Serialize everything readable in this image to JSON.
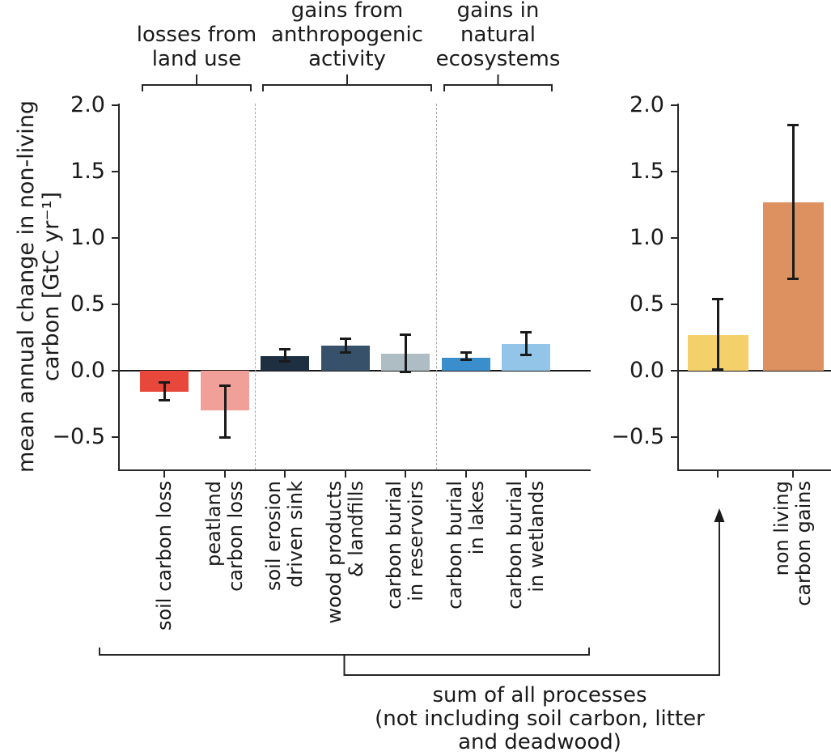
{
  "chart_data": {
    "type": "bar",
    "title": "",
    "ylabel": "mean annual change in non-living\ncarbon [GtC yr⁻¹]",
    "ylim": [
      -0.75,
      2.02
    ],
    "yticks": [
      2.0,
      1.5,
      1.0,
      0.5,
      0.0,
      -0.5
    ],
    "ytick_labels": [
      "2.0",
      "1.5",
      "1.0",
      "0.5",
      "0.0",
      "−0.5"
    ],
    "grid": false,
    "legend": "none",
    "unit": "GtC yr⁻¹",
    "panels": [
      {
        "name": "individual-processes",
        "bars": [
          {
            "label": "soil carbon loss",
            "value": -0.16,
            "err_lo": -0.22,
            "err_hi": -0.09,
            "color": "#e8483c"
          },
          {
            "label": "peatland\ncarbon loss",
            "value": -0.3,
            "err_lo": -0.5,
            "err_hi": -0.11,
            "color": "#f1a099"
          },
          {
            "label": "soil erosion\ndriven sink",
            "value": 0.11,
            "err_lo": 0.07,
            "err_hi": 0.16,
            "color": "#1d2f40"
          },
          {
            "label": "wood products\n& landfills",
            "value": 0.19,
            "err_lo": 0.14,
            "err_hi": 0.24,
            "color": "#37516b"
          },
          {
            "label": "carbon burial\nin reservoirs",
            "value": 0.13,
            "err_lo": -0.01,
            "err_hi": 0.27,
            "color": "#aebcc4"
          },
          {
            "label": "carbon burial\nin lakes",
            "value": 0.1,
            "err_lo": 0.08,
            "err_hi": 0.14,
            "color": "#3a8ecb"
          },
          {
            "label": "carbon burial\nin wetlands",
            "value": 0.2,
            "err_lo": 0.12,
            "err_hi": 0.29,
            "color": "#93c5e8"
          }
        ],
        "groups": [
          {
            "label": "losses from\nland use",
            "from": 0,
            "to": 1
          },
          {
            "label": "gains from\nanthropogenic\nactivity",
            "from": 2,
            "to": 4
          },
          {
            "label": "gains in\nnatural\necosystems",
            "from": 5,
            "to": 6
          }
        ],
        "separators_after": [
          1,
          4
        ]
      },
      {
        "name": "sum-of-processes",
        "bars": [
          {
            "label": "",
            "value": 0.27,
            "err_lo": 0.01,
            "err_hi": 0.54,
            "color": "#f4d06a"
          },
          {
            "label": "non living\ncarbon gains",
            "value": 1.27,
            "err_lo": 0.69,
            "err_hi": 1.85,
            "color": "#dd9160"
          }
        ],
        "groups": [],
        "separators_after": []
      }
    ],
    "annotation": "sum of all processes\n(not including soil carbon, litter\nand deadwood)",
    "style": {
      "axis_color": "#262626",
      "errorbar_color": "#1a1a1a",
      "separator_color": "#a9a9a9",
      "background": "#ffffff"
    }
  }
}
